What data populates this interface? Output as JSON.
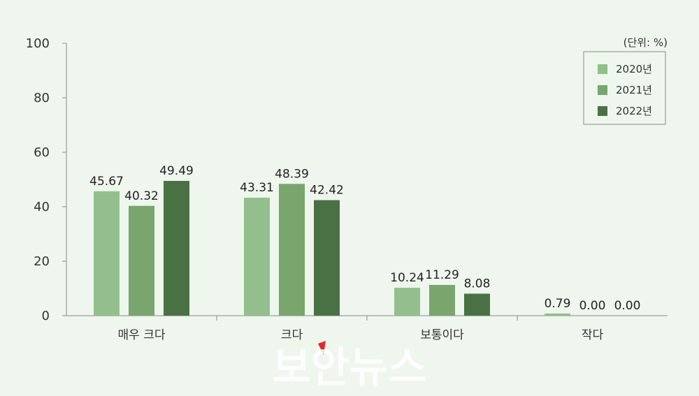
{
  "chart_data": {
    "type": "bar",
    "unit_label": "(단위: %)",
    "categories": [
      "매우 크다",
      "크다",
      "보통이다",
      "작다"
    ],
    "series": [
      {
        "name": "2020년",
        "values": [
          45.67,
          43.31,
          10.24,
          0.79
        ],
        "color": "#93bf8d"
      },
      {
        "name": "2021년",
        "values": [
          40.32,
          48.39,
          11.29,
          0.0
        ],
        "color": "#78a66c"
      },
      {
        "name": "2022년",
        "values": [
          49.49,
          42.42,
          8.08,
          0.0
        ],
        "color": "#4a7144"
      }
    ],
    "value_labels": [
      [
        "45.67",
        "43.31",
        "10.24",
        "0.79"
      ],
      [
        "40.32",
        "48.39",
        "11.29",
        "0.00"
      ],
      [
        "49.49",
        "42.42",
        "8.08",
        "0.00"
      ]
    ],
    "ylim": [
      0,
      100
    ],
    "yticks": [
      "0",
      "20",
      "40",
      "60",
      "80",
      "100"
    ],
    "legend_position": "top-right",
    "grid": false,
    "watermark": "보안뉴스"
  }
}
